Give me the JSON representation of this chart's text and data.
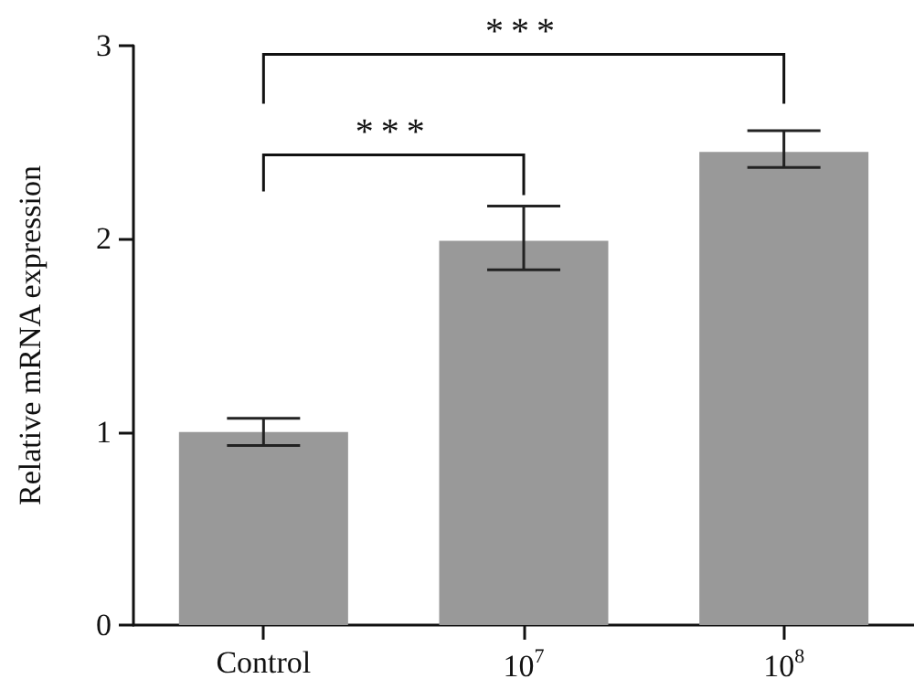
{
  "chart_data": {
    "type": "bar",
    "ylabel": "Relative mRNA expression",
    "categories": [
      "Control",
      "10$^{7}$",
      "10$^{8}$"
    ],
    "values": [
      1.0,
      1.99,
      2.45
    ],
    "errors": [
      [
        0.93,
        1.07
      ],
      [
        1.84,
        2.17
      ],
      [
        2.37,
        2.56
      ]
    ],
    "color": "#999999",
    "ylim": [
      0,
      3
    ],
    "yticks": [
      0,
      1,
      2,
      3
    ],
    "grid": false,
    "annotations": [
      "***",
      "***"
    ]
  }
}
